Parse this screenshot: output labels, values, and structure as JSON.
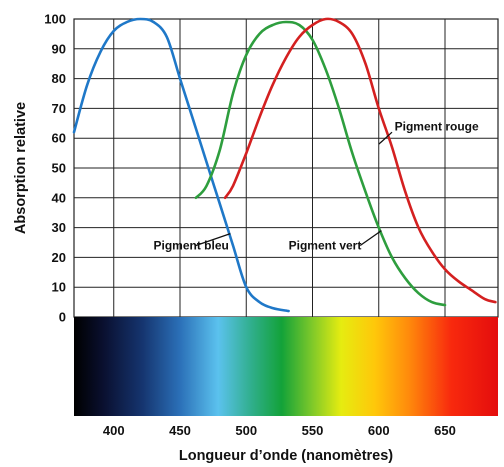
{
  "chart_data": {
    "type": "line",
    "xlabel": "Longueur d’onde (nanomètres)",
    "ylabel": "Absorption relative",
    "xlim": [
      370,
      690
    ],
    "ylim": [
      0,
      100
    ],
    "x_ticks": [
      400,
      450,
      500,
      550,
      600,
      650
    ],
    "y_ticks": [
      0,
      10,
      20,
      30,
      40,
      50,
      60,
      70,
      80,
      90,
      100
    ],
    "x_tick_labels": [
      "400",
      "450",
      "500",
      "550",
      "600",
      "650"
    ],
    "y_tick_labels": [
      "0",
      "10",
      "20",
      "30",
      "40",
      "50",
      "60",
      "70",
      "80",
      "90",
      "100"
    ],
    "grid": true,
    "spectrum_bar": true,
    "series": [
      {
        "name": "Pigment bleu",
        "color": "#1f78c8",
        "points": [
          [
            370,
            62
          ],
          [
            380,
            78
          ],
          [
            390,
            89
          ],
          [
            400,
            96
          ],
          [
            410,
            99
          ],
          [
            420,
            100
          ],
          [
            430,
            99
          ],
          [
            440,
            94
          ],
          [
            450,
            80
          ],
          [
            460,
            66
          ],
          [
            470,
            52
          ],
          [
            480,
            38
          ],
          [
            490,
            24
          ],
          [
            500,
            10
          ],
          [
            510,
            5
          ],
          [
            520,
            3
          ],
          [
            532,
            2
          ]
        ]
      },
      {
        "name": "Pigment vert",
        "color": "#2e9e3e",
        "points": [
          [
            462,
            40
          ],
          [
            470,
            44
          ],
          [
            480,
            56
          ],
          [
            490,
            75
          ],
          [
            500,
            88
          ],
          [
            510,
            95
          ],
          [
            520,
            98
          ],
          [
            530,
            99
          ],
          [
            540,
            98
          ],
          [
            550,
            93
          ],
          [
            560,
            83
          ],
          [
            570,
            70
          ],
          [
            580,
            55
          ],
          [
            590,
            42
          ],
          [
            600,
            30
          ],
          [
            610,
            20
          ],
          [
            620,
            13
          ],
          [
            630,
            8
          ],
          [
            640,
            5
          ],
          [
            650,
            4
          ]
        ]
      },
      {
        "name": "Pigment rouge",
        "color": "#d42020",
        "points": [
          [
            484,
            40
          ],
          [
            490,
            44
          ],
          [
            500,
            55
          ],
          [
            510,
            67
          ],
          [
            520,
            78
          ],
          [
            530,
            87
          ],
          [
            540,
            94
          ],
          [
            550,
            98
          ],
          [
            560,
            100
          ],
          [
            570,
            99
          ],
          [
            580,
            95
          ],
          [
            590,
            85
          ],
          [
            600,
            70
          ],
          [
            610,
            57
          ],
          [
            620,
            42
          ],
          [
            630,
            30
          ],
          [
            640,
            22
          ],
          [
            650,
            16
          ],
          [
            660,
            12
          ],
          [
            670,
            9
          ],
          [
            680,
            6
          ],
          [
            688,
            5
          ]
        ]
      }
    ],
    "annotations": [
      {
        "text": "Pigment bleu",
        "x": 430,
        "y": 24,
        "pointer": [
          [
            462,
            24
          ],
          [
            488,
            28
          ]
        ]
      },
      {
        "text": "Pigment vert",
        "x": 532,
        "y": 24,
        "pointer": [
          [
            586,
            24
          ],
          [
            602,
            29
          ]
        ]
      },
      {
        "text": "Pigment rouge",
        "x": 612,
        "y": 64,
        "pointer": [
          [
            610,
            62
          ],
          [
            600,
            58
          ]
        ]
      }
    ]
  }
}
